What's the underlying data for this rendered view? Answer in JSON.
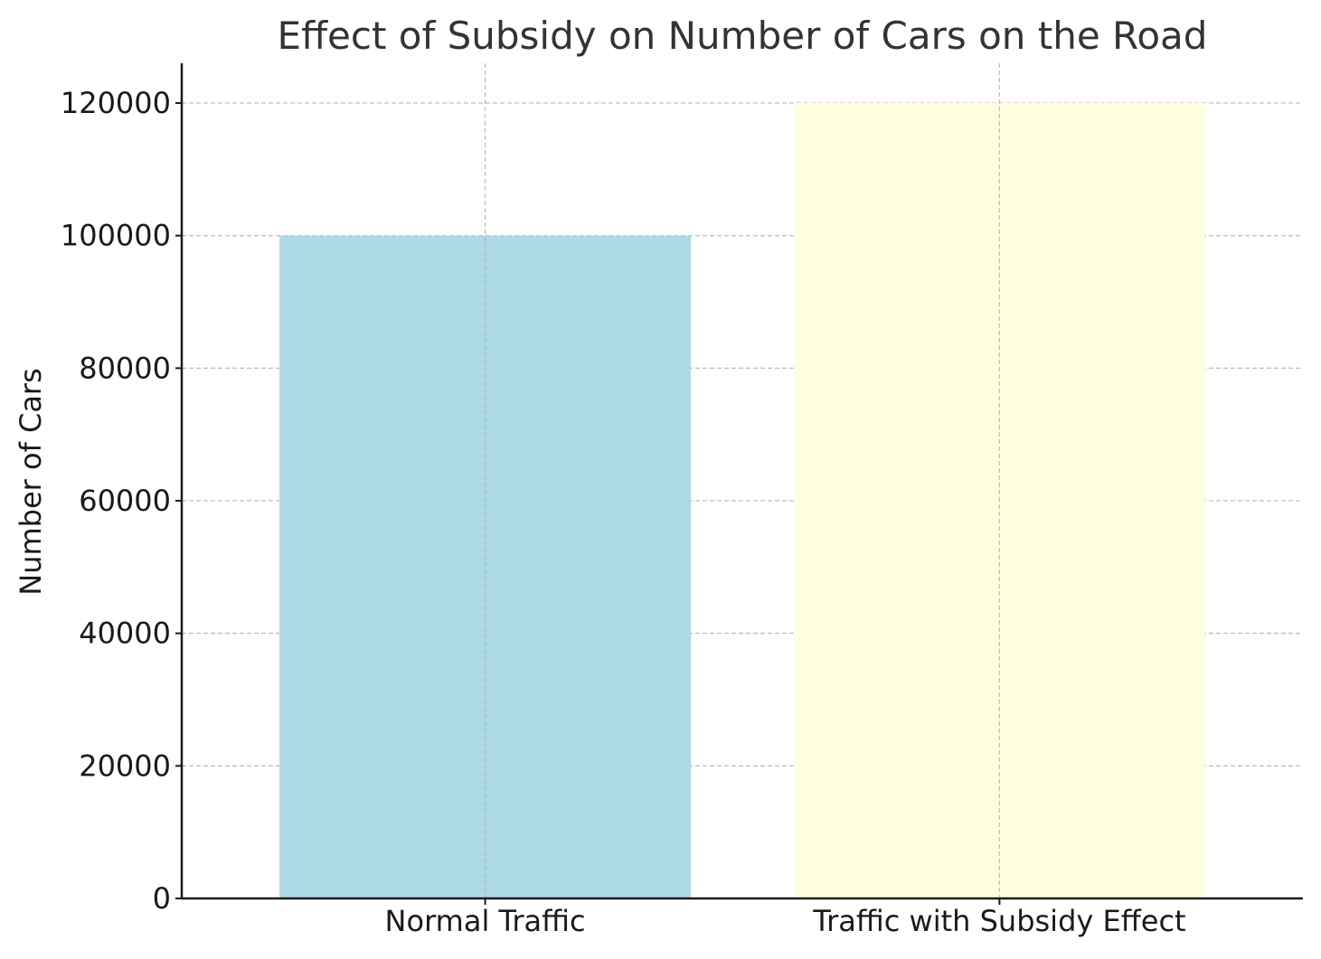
{
  "chart_data": {
    "type": "bar",
    "title": "Effect of Subsidy on Number of Cars on the Road",
    "xlabel": "",
    "ylabel": "Number of Cars",
    "categories": [
      "Normal Traffic",
      "Traffic with Subsidy Effect"
    ],
    "values": [
      100000,
      120000
    ],
    "colors": [
      "#add8e6",
      "#ffffe0"
    ],
    "ylim": [
      0,
      126000
    ],
    "yticks": [
      0,
      20000,
      40000,
      60000,
      80000,
      100000,
      120000
    ],
    "grid": true,
    "grid_color": "#b0b0b0",
    "axis_color": "#1a1a1a"
  }
}
